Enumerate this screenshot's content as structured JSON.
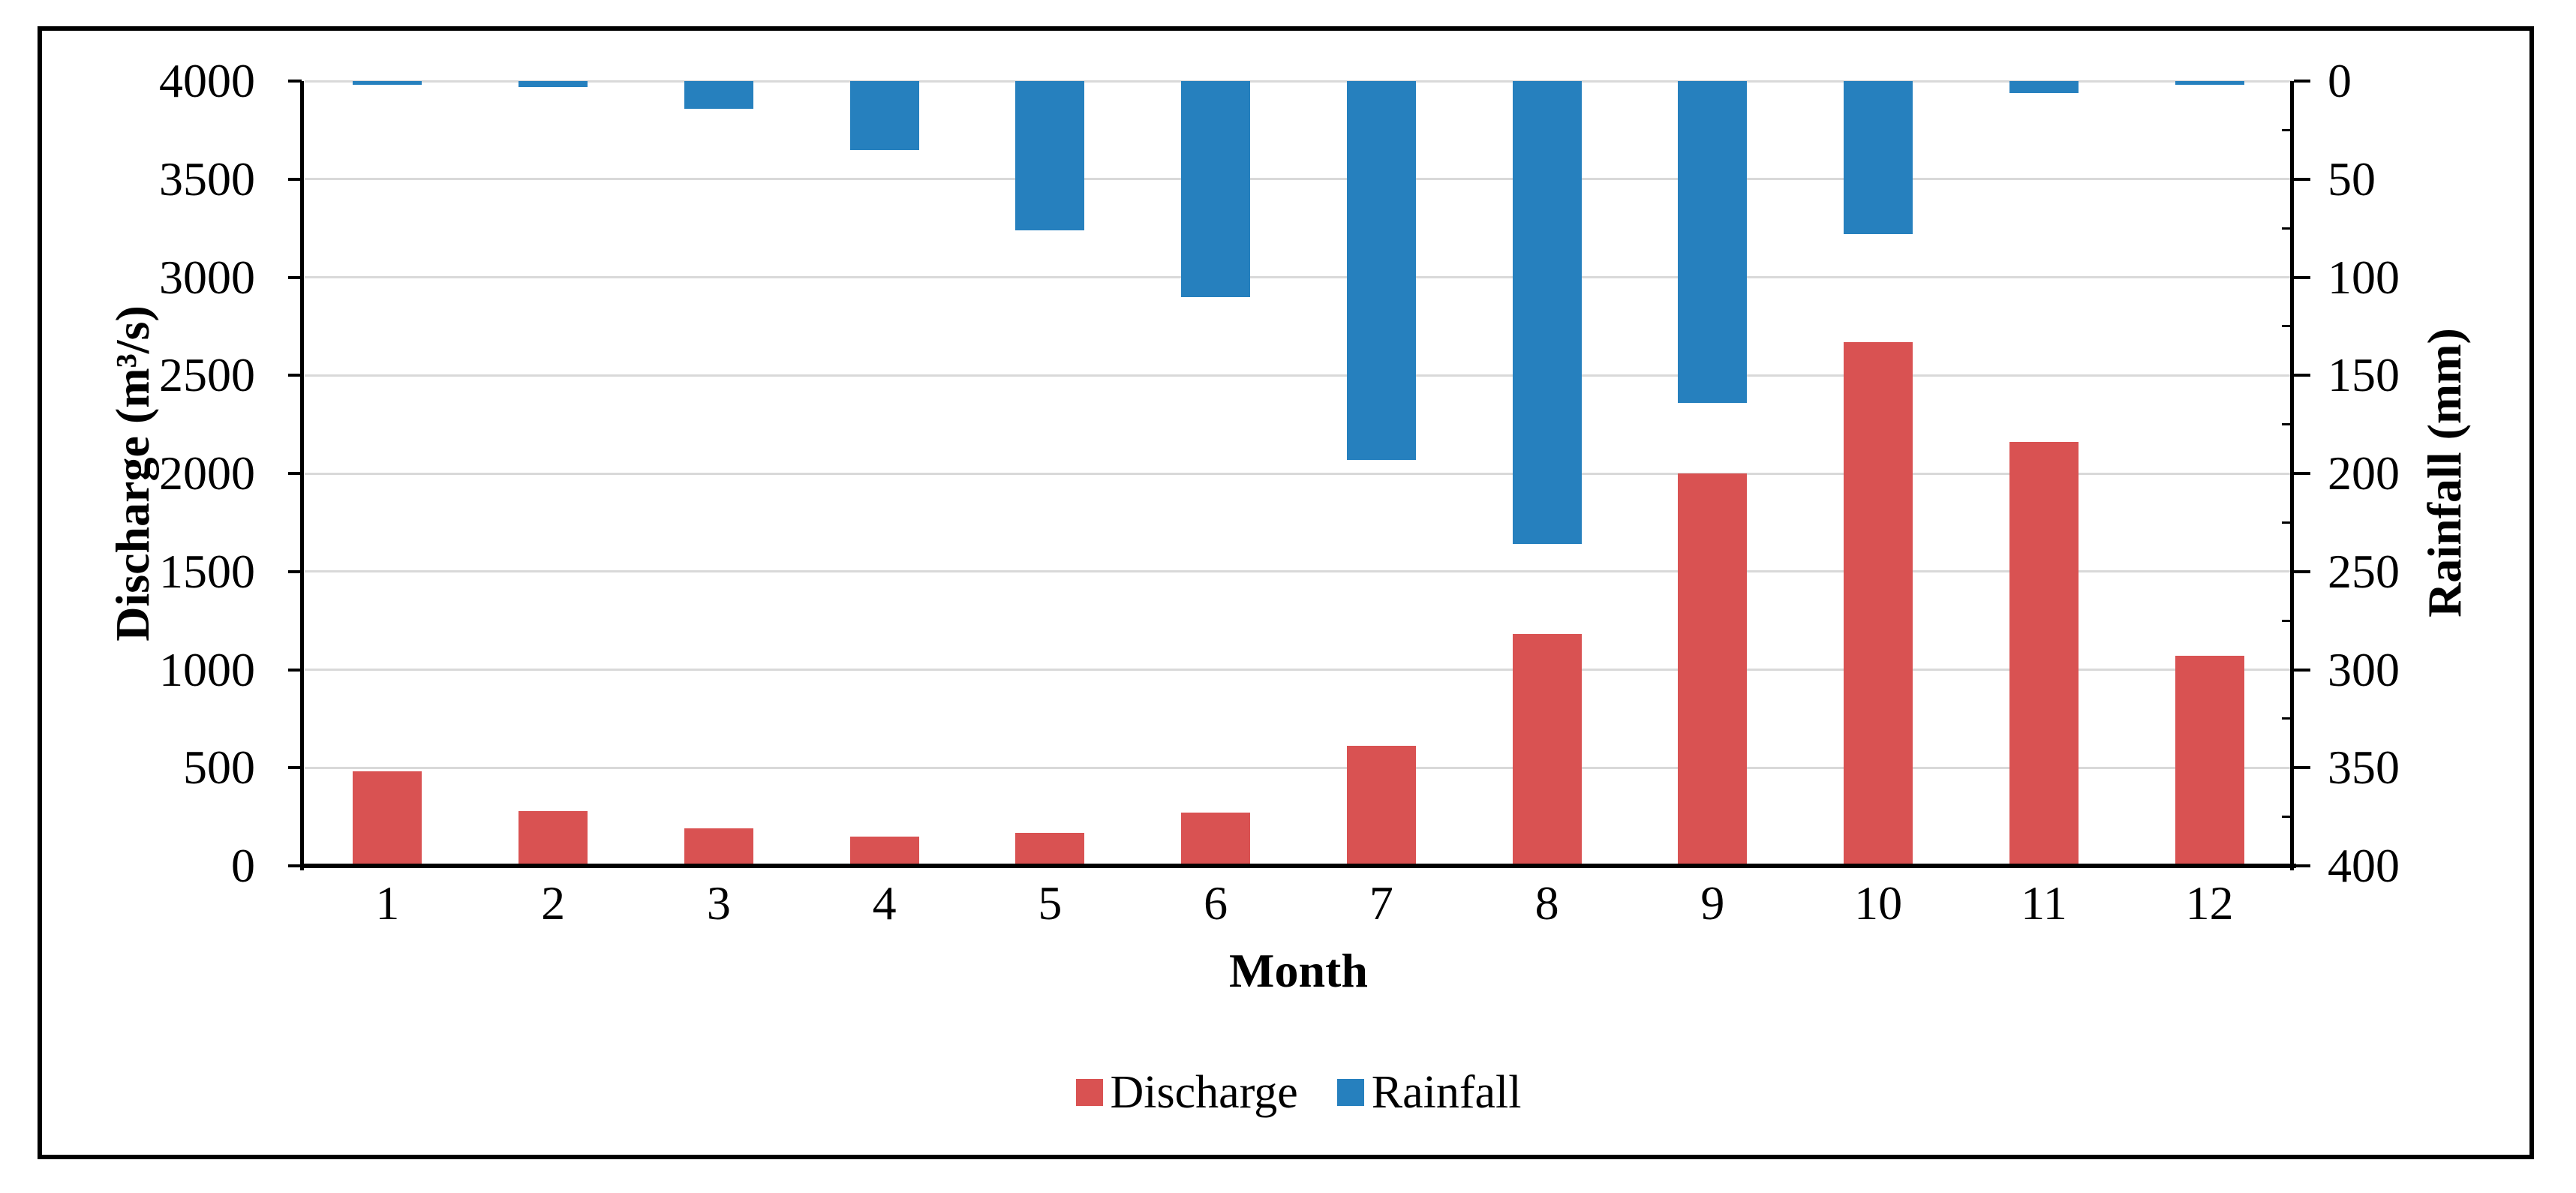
{
  "chart_data": {
    "type": "bar",
    "title": "",
    "xlabel": "Month",
    "ylabel_left": "Discharge (m³/s)",
    "ylabel_right": "Rainfall (mm)",
    "categories": [
      1,
      2,
      3,
      4,
      5,
      6,
      7,
      8,
      9,
      10,
      11,
      12
    ],
    "series": [
      {
        "name": "Discharge",
        "axis": "left",
        "unit": "m³/s",
        "color": "#d95252",
        "values": [
          480,
          280,
          190,
          150,
          170,
          270,
          610,
          1180,
          2000,
          2670,
          2160,
          1070
        ]
      },
      {
        "name": "Rainfall",
        "axis": "right",
        "unit": "mm",
        "color": "#2680be",
        "orientation": "hanging-from-top",
        "values": [
          2,
          3,
          14,
          35,
          76,
          110,
          193,
          236,
          164,
          78,
          6,
          2
        ]
      }
    ],
    "left_axis": {
      "min": 0,
      "max": 4000,
      "step": 500,
      "ticks": [
        0,
        500,
        1000,
        1500,
        2000,
        2500,
        3000,
        3500,
        4000
      ]
    },
    "right_axis": {
      "min": 0,
      "max": 400,
      "step": 50,
      "inverted": true,
      "minor_step": 25,
      "ticks": [
        0,
        50,
        100,
        150,
        200,
        250,
        300,
        350,
        400
      ]
    },
    "grid": true,
    "legend_position": "bottom-center"
  },
  "legend": {
    "items": [
      {
        "label": "Discharge",
        "color": "#d95252"
      },
      {
        "label": "Rainfall",
        "color": "#2680be"
      }
    ]
  },
  "colors": {
    "discharge_bar": "#d95252",
    "rainfall_bar": "#2680be",
    "gridline": "#d9d9d9",
    "axis": "#000000",
    "border": "#000000",
    "background": "#ffffff",
    "text": "#000000"
  }
}
